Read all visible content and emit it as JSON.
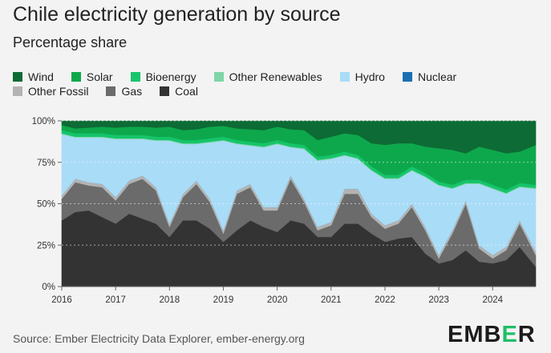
{
  "title": "Chile electricity generation by source",
  "subtitle": "Percentage share",
  "source": "Source: Ember Electricity Data Explorer, ember-energy.org",
  "brand": {
    "prefix": "EMB",
    "accent": "E",
    "suffix": "R",
    "accent_color": "#1fbf67"
  },
  "legend": [
    {
      "name": "Wind",
      "color": "#0d6b35"
    },
    {
      "name": "Solar",
      "color": "#0ea84c"
    },
    {
      "name": "Bioenergy",
      "color": "#16c46a"
    },
    {
      "name": "Other Renewables",
      "color": "#7fd6a8"
    },
    {
      "name": "Hydro",
      "color": "#a9dcf7"
    },
    {
      "name": "Nuclear",
      "color": "#1b6fb5"
    },
    {
      "name": "Other Fossil",
      "color": "#b3b3b3"
    },
    {
      "name": "Gas",
      "color": "#6b6b6b"
    },
    {
      "name": "Coal",
      "color": "#333333"
    }
  ],
  "chart_data": {
    "type": "area",
    "stacked": true,
    "x_range": [
      2016.0,
      2024.8
    ],
    "ylim": [
      0,
      100
    ],
    "y_ticks": [
      0,
      25,
      50,
      75,
      100
    ],
    "y_tick_labels": [
      "0%",
      "25%",
      "50%",
      "75%",
      "100%"
    ],
    "x_ticks": [
      2016,
      2017,
      2018,
      2019,
      2020,
      2021,
      2022,
      2023,
      2024
    ],
    "x_tick_labels": [
      "2016",
      "2017",
      "2018",
      "2019",
      "2020",
      "2021",
      "2022",
      "2023",
      "2024"
    ],
    "grid": true,
    "legend_position": "top",
    "x": [
      2016.0,
      2016.25,
      2016.5,
      2016.75,
      2017.0,
      2017.25,
      2017.5,
      2017.75,
      2018.0,
      2018.25,
      2018.5,
      2018.75,
      2019.0,
      2019.25,
      2019.5,
      2019.75,
      2020.0,
      2020.25,
      2020.5,
      2020.75,
      2021.0,
      2021.25,
      2021.5,
      2021.75,
      2022.0,
      2022.25,
      2022.5,
      2022.75,
      2023.0,
      2023.25,
      2023.5,
      2023.75,
      2024.0,
      2024.25,
      2024.5,
      2024.8
    ],
    "series": [
      {
        "name": "Coal",
        "color": "#333333",
        "values": [
          40,
          45,
          46,
          42,
          38,
          44,
          41,
          38,
          30,
          40,
          40,
          35,
          27,
          34,
          40,
          36,
          33,
          40,
          38,
          30,
          30,
          38,
          38,
          32,
          27,
          29,
          30,
          20,
          14,
          16,
          22,
          15,
          14,
          16,
          24,
          12
        ]
      },
      {
        "name": "Gas",
        "color": "#6b6b6b",
        "values": [
          13,
          18,
          15,
          18,
          14,
          18,
          24,
          20,
          6,
          14,
          22,
          16,
          5,
          22,
          20,
          10,
          13,
          25,
          13,
          4,
          7,
          18,
          18,
          10,
          8,
          9,
          18,
          14,
          3,
          16,
          28,
          8,
          3,
          6,
          14,
          7
        ]
      },
      {
        "name": "Other Fossil",
        "color": "#b3b3b3",
        "values": [
          2,
          2,
          2,
          2,
          2,
          2,
          2,
          2,
          2,
          2,
          2,
          2,
          2,
          2,
          2,
          2,
          2,
          2,
          2,
          2,
          2,
          3,
          3,
          2,
          2,
          2,
          2,
          2,
          2,
          2,
          2,
          2,
          2,
          2,
          2,
          2
        ]
      },
      {
        "name": "Nuclear",
        "color": "#1b6fb5",
        "values": [
          0,
          0,
          0,
          0,
          0,
          0,
          0,
          0,
          0,
          0,
          0,
          0,
          0,
          0,
          0,
          0,
          0,
          0,
          0,
          0,
          0,
          0,
          0,
          0,
          0,
          0,
          0,
          0,
          0,
          0,
          0,
          0,
          0,
          0,
          0,
          0
        ]
      },
      {
        "name": "Hydro",
        "color": "#a9dcf7",
        "values": [
          37,
          25,
          27,
          28,
          35,
          25,
          22,
          28,
          50,
          30,
          22,
          34,
          54,
          28,
          23,
          36,
          38,
          17,
          30,
          40,
          38,
          20,
          18,
          26,
          28,
          25,
          20,
          30,
          42,
          25,
          10,
          37,
          40,
          32,
          20,
          38
        ]
      },
      {
        "name": "Other Renewables",
        "color": "#7fd6a8",
        "values": [
          0.5,
          0.5,
          0.5,
          0.5,
          0.5,
          0.5,
          0.5,
          0.5,
          0.5,
          0.5,
          0.5,
          0.5,
          0.5,
          0.5,
          0.5,
          0.5,
          0.5,
          0.5,
          0.5,
          0.5,
          0.5,
          0.5,
          0.5,
          0.5,
          0.5,
          0.5,
          0.5,
          0.5,
          0.5,
          0.5,
          0.5,
          0.5,
          0.5,
          0.5,
          0.5,
          0.5
        ]
      },
      {
        "name": "Bioenergy",
        "color": "#16c46a",
        "values": [
          2,
          2,
          2,
          2,
          2,
          2,
          2,
          2,
          2,
          2,
          2,
          2,
          2,
          2,
          2,
          2,
          2,
          2,
          2,
          2,
          2,
          2,
          2,
          2,
          2,
          2,
          2,
          2,
          2,
          2,
          2,
          2,
          2,
          2,
          2,
          2
        ]
      },
      {
        "name": "Solar",
        "color": "#0ea84c",
        "values": [
          3,
          3,
          3.5,
          4,
          4.5,
          5,
          5,
          5.5,
          6,
          6,
          6.5,
          7,
          6.5,
          7,
          7.5,
          8,
          8,
          8.5,
          9,
          10,
          11,
          11,
          12,
          14,
          18,
          19,
          14,
          16,
          20,
          21,
          16,
          20,
          21,
          22,
          19,
          24
        ]
      },
      {
        "name": "Wind",
        "color": "#0d6b35",
        "values": [
          2.5,
          4.5,
          4,
          3.5,
          4,
          3.5,
          3.5,
          4,
          3.5,
          5.5,
          5,
          3.5,
          3,
          4.5,
          5,
          5.5,
          3.5,
          5,
          5.5,
          11.5,
          9.5,
          7.5,
          8.5,
          15.5,
          14.5,
          13.5,
          13.5,
          15.5,
          18.5,
          17.5,
          21.5,
          17.5,
          19.5,
          19.5,
          20.5,
          14.5
        ]
      }
    ]
  }
}
